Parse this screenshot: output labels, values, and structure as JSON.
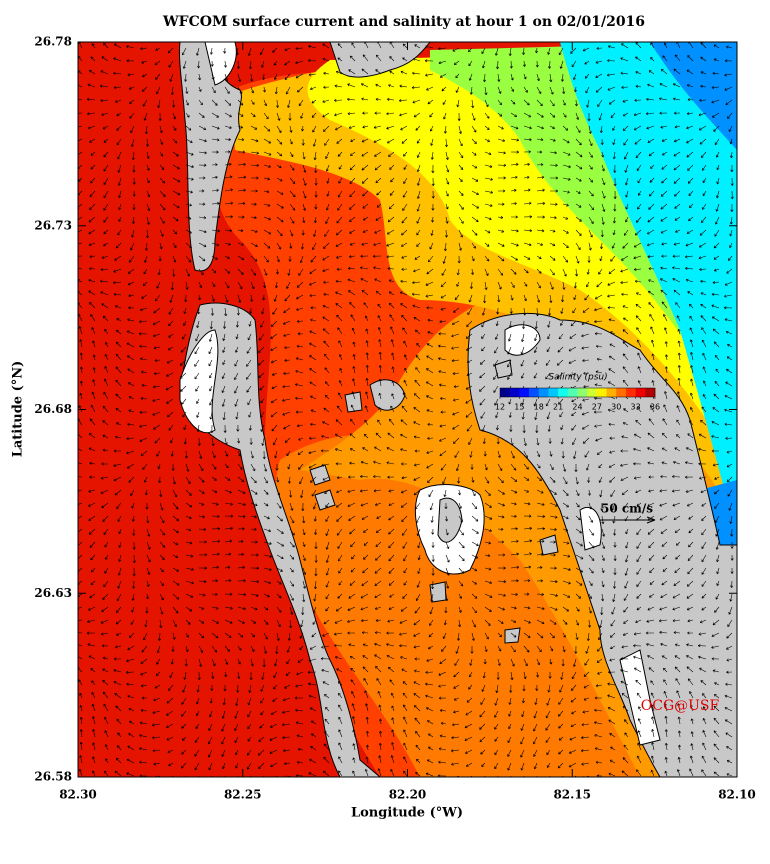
{
  "chart_data": {
    "type": "map",
    "title": "WFCOM surface current and salinity at hour 1 on 02/01/2016",
    "x_label": "Longitude (°W)",
    "y_label": "Latitude (°N)",
    "xlim": [
      82.3,
      82.1
    ],
    "xticks": [
      {
        "value": 82.3,
        "label": "82.30"
      },
      {
        "value": 82.25,
        "label": "82.25"
      },
      {
        "value": 82.2,
        "label": "82.20"
      },
      {
        "value": 82.15,
        "label": "82.15"
      },
      {
        "value": 82.1,
        "label": "82.10"
      }
    ],
    "ylim": [
      26.58,
      26.78
    ],
    "yticks": [
      26.58,
      26.63,
      26.68,
      26.73,
      26.78
    ],
    "colorbar": {
      "title": "Salinity (psu)",
      "lim": [
        12,
        36
      ],
      "ticks": [
        12,
        15,
        18,
        21,
        24,
        27,
        30,
        33,
        36
      ],
      "colors": [
        "#00008f",
        "#0000c8",
        "#0010ff",
        "#0050ff",
        "#0090ff",
        "#00c8ff",
        "#10ffef",
        "#50ffaf",
        "#90ff6f",
        "#cfff30",
        "#ffef00",
        "#ffb000",
        "#ff7000",
        "#ff3000",
        "#ef0000",
        "#b00000"
      ]
    },
    "scale_label": "50 cm/s",
    "credit": "OCG@USF"
  }
}
